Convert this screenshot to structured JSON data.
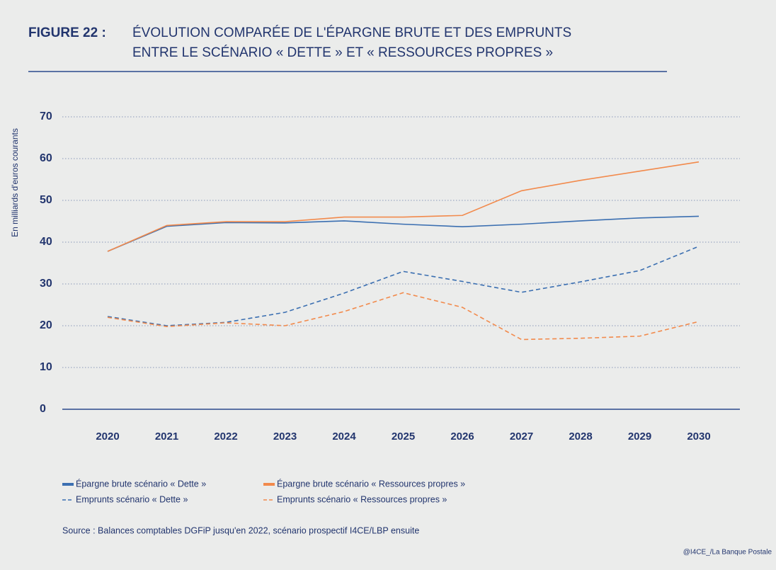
{
  "chart_data": {
    "type": "line",
    "title_prefix": "FIGURE 22 :",
    "title": [
      "ÉVOLUTION COMPARÉE DE L'ÉPARGNE BRUTE ET DES EMPRUNTS",
      "ENTRE LE SCÉNARIO « DETTE » ET « RESSOURCES PROPRES »"
    ],
    "y_label": "En milliards d'euros courants",
    "categories": [
      "2020",
      "2021",
      "2022",
      "2023",
      "2024",
      "2025",
      "2026",
      "2027",
      "2028",
      "2029",
      "2030"
    ],
    "series": [
      {
        "name": "Épargne brute scénario « Dette »",
        "color": "#3b6fb1",
        "dashed": false,
        "values": [
          37.8,
          43.8,
          44.7,
          44.6,
          45.1,
          44.3,
          43.7,
          44.3,
          45.1,
          45.8,
          46.2
        ]
      },
      {
        "name": "Épargne brute scénario « Ressources propres »",
        "color": "#f28a4c",
        "dashed": false,
        "values": [
          37.8,
          44.0,
          44.9,
          44.9,
          46.0,
          46.0,
          46.4,
          52.3,
          54.8,
          57.0,
          59.2
        ]
      },
      {
        "name": "Emprunts scénario « Dette »",
        "color": "#3b6fb1",
        "dashed": true,
        "values": [
          22.2,
          20.0,
          20.8,
          23.2,
          27.8,
          33.0,
          30.6,
          28.0,
          30.5,
          33.2,
          39.0
        ]
      },
      {
        "name": "Emprunts scénario « Ressources propres »",
        "color": "#f28a4c",
        "dashed": true,
        "values": [
          22.0,
          19.8,
          20.7,
          20.0,
          23.4,
          27.9,
          24.4,
          16.7,
          17.0,
          17.5,
          21.0
        ]
      }
    ],
    "ylim": [
      0,
      70
    ],
    "yticks": [
      0,
      10,
      20,
      30,
      40,
      50,
      60,
      70
    ],
    "grid": true,
    "source": "Source : Balances comptables DGFiP jusqu'en 2022, scénario prospectif I4CE/LBP ensuite",
    "credit": "@I4CE_/La Banque Postale"
  }
}
